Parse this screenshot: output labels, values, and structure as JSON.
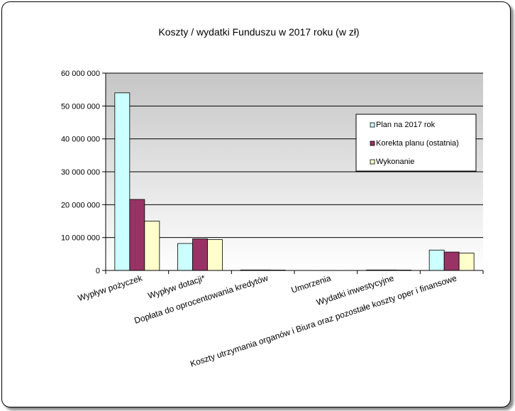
{
  "chart_data": {
    "type": "bar",
    "title": "Koszty / wydatki Funduszu w 2017 roku (w zł)",
    "categories": [
      "Wypływ pożyczek",
      "Wypływ dotacji*",
      "Dopłata do oprocentowania kredytów",
      "Umorzenia",
      "Wydatki inwestycyjne",
      "Koszty utrzymania organów i Biura oraz pozostałe koszty oper i finansowe"
    ],
    "series": [
      {
        "name": "Plan na 2017  rok",
        "color": "#ccffff",
        "values": [
          54000000,
          8200000,
          150000,
          0,
          150000,
          6200000
        ]
      },
      {
        "name": "Korekta planu (ostatnia)",
        "color": "#993366",
        "values": [
          21600000,
          9600000,
          150000,
          0,
          150000,
          5600000
        ]
      },
      {
        "name": "Wykonanie",
        "color": "#ffffcc",
        "values": [
          15000000,
          9400000,
          120000,
          0,
          120000,
          5300000
        ]
      }
    ],
    "ylim": [
      0,
      60000000
    ],
    "yticks": [
      0,
      10000000,
      20000000,
      30000000,
      40000000,
      50000000,
      60000000
    ],
    "ytick_labels": [
      "0",
      "10 000 000",
      "20 000 000",
      "30 000 000",
      "40 000 000",
      "50 000 000",
      "60 000 000"
    ],
    "grid": true,
    "legend_position": "inside-right"
  }
}
